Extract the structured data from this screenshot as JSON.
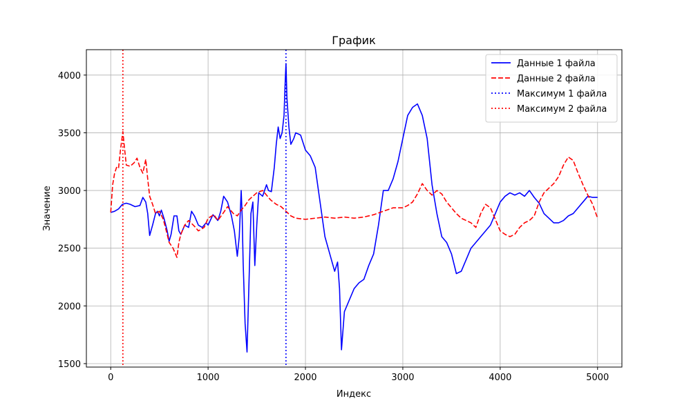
{
  "chart_data": {
    "type": "line",
    "title": "График",
    "xlabel": "Индекс",
    "ylabel": "Значение",
    "xlim": [
      -250,
      5250
    ],
    "ylim": [
      1470,
      4220
    ],
    "xticks": [
      0,
      1000,
      2000,
      3000,
      4000,
      5000
    ],
    "yticks": [
      1500,
      2000,
      2500,
      3000,
      3500,
      4000
    ],
    "grid": true,
    "legend_position": "top-right",
    "series": [
      {
        "name": "Данные 1 файла",
        "color": "#0000ff",
        "style": "solid",
        "x": [
          0,
          40,
          80,
          120,
          160,
          200,
          250,
          300,
          330,
          360,
          380,
          400,
          430,
          460,
          480,
          500,
          520,
          550,
          580,
          600,
          620,
          650,
          680,
          700,
          720,
          760,
          800,
          830,
          860,
          900,
          940,
          980,
          1000,
          1050,
          1100,
          1130,
          1160,
          1200,
          1240,
          1270,
          1300,
          1320,
          1340,
          1350,
          1360,
          1380,
          1400,
          1420,
          1440,
          1460,
          1480,
          1500,
          1520,
          1560,
          1600,
          1620,
          1650,
          1680,
          1700,
          1720,
          1740,
          1760,
          1780,
          1790,
          1800,
          1810,
          1830,
          1850,
          1880,
          1900,
          1950,
          2000,
          2050,
          2100,
          2150,
          2200,
          2250,
          2300,
          2330,
          2350,
          2370,
          2400,
          2450,
          2500,
          2550,
          2600,
          2650,
          2700,
          2750,
          2800,
          2850,
          2900,
          2950,
          3000,
          3050,
          3100,
          3150,
          3200,
          3250,
          3300,
          3350,
          3400,
          3450,
          3500,
          3550,
          3600,
          3650,
          3700,
          3750,
          3800,
          3850,
          3900,
          3950,
          4000,
          4050,
          4100,
          4150,
          4200,
          4250,
          4300,
          4350,
          4400,
          4450,
          4500,
          4550,
          4600,
          4650,
          4700,
          4750,
          4800,
          4850,
          4900,
          4950,
          5000
        ],
        "y": [
          2810,
          2820,
          2840,
          2880,
          2890,
          2880,
          2860,
          2870,
          2940,
          2900,
          2800,
          2610,
          2700,
          2800,
          2820,
          2780,
          2830,
          2750,
          2650,
          2560,
          2620,
          2780,
          2780,
          2650,
          2620,
          2700,
          2680,
          2820,
          2780,
          2700,
          2680,
          2720,
          2700,
          2790,
          2740,
          2820,
          2950,
          2900,
          2780,
          2650,
          2430,
          2600,
          3000,
          2780,
          2380,
          1850,
          1600,
          2200,
          2800,
          2900,
          2350,
          2700,
          2980,
          2950,
          3050,
          3000,
          2990,
          3200,
          3400,
          3550,
          3450,
          3500,
          3650,
          3900,
          4100,
          3800,
          3550,
          3400,
          3450,
          3500,
          3480,
          3350,
          3300,
          3200,
          2900,
          2600,
          2450,
          2300,
          2380,
          2150,
          1620,
          1950,
          2050,
          2150,
          2200,
          2230,
          2350,
          2450,
          2700,
          3000,
          3000,
          3100,
          3250,
          3450,
          3650,
          3720,
          3750,
          3650,
          3450,
          3050,
          2800,
          2600,
          2550,
          2450,
          2280,
          2300,
          2400,
          2500,
          2550,
          2600,
          2650,
          2700,
          2800,
          2900,
          2950,
          2980,
          2960,
          2980,
          2950,
          3000,
          2940,
          2890,
          2800,
          2760,
          2720,
          2720,
          2740,
          2780,
          2800,
          2850,
          2900,
          2950,
          2940,
          2940
        ]
      },
      {
        "name": "Данные 2 файла",
        "color": "#ff0000",
        "style": "dashed",
        "x": [
          0,
          20,
          40,
          60,
          80,
          100,
          125,
          140,
          160,
          200,
          240,
          270,
          300,
          330,
          360,
          380,
          400,
          430,
          460,
          500,
          540,
          580,
          600,
          640,
          680,
          700,
          720,
          760,
          800,
          860,
          900,
          960,
          1000,
          1060,
          1100,
          1160,
          1200,
          1260,
          1300,
          1340,
          1380,
          1420,
          1460,
          1500,
          1560,
          1600,
          1640,
          1700,
          1750,
          1800,
          1850,
          1900,
          2000,
          2100,
          2200,
          2300,
          2400,
          2500,
          2600,
          2700,
          2800,
          2900,
          3000,
          3050,
          3100,
          3150,
          3200,
          3250,
          3300,
          3350,
          3400,
          3450,
          3500,
          3550,
          3600,
          3650,
          3700,
          3750,
          3800,
          3850,
          3900,
          3950,
          4000,
          4050,
          4100,
          4150,
          4200,
          4250,
          4300,
          4350,
          4400,
          4450,
          4500,
          4550,
          4600,
          4650,
          4700,
          4750,
          4800,
          4850,
          4900,
          4950,
          5000
        ],
        "y": [
          2810,
          3050,
          3150,
          3200,
          3190,
          3350,
          3510,
          3380,
          3220,
          3210,
          3240,
          3280,
          3200,
          3150,
          3270,
          3100,
          2950,
          2880,
          2800,
          2820,
          2750,
          2620,
          2550,
          2500,
          2420,
          2550,
          2620,
          2700,
          2740,
          2690,
          2650,
          2680,
          2760,
          2790,
          2740,
          2810,
          2860,
          2800,
          2780,
          2830,
          2870,
          2920,
          2950,
          2980,
          3000,
          2960,
          2920,
          2880,
          2860,
          2820,
          2780,
          2760,
          2750,
          2760,
          2770,
          2760,
          2770,
          2760,
          2770,
          2790,
          2820,
          2850,
          2850,
          2870,
          2900,
          2970,
          3060,
          3000,
          2960,
          3000,
          2970,
          2900,
          2850,
          2800,
          2760,
          2740,
          2720,
          2680,
          2800,
          2880,
          2850,
          2750,
          2650,
          2620,
          2600,
          2620,
          2680,
          2720,
          2740,
          2780,
          2900,
          2980,
          3020,
          3060,
          3120,
          3220,
          3290,
          3260,
          3150,
          3050,
          2960,
          2880,
          2760
        ]
      }
    ],
    "vlines": [
      {
        "name": "Максимум 1 файла",
        "x": 1800,
        "color": "#0000ff",
        "style": "dotted"
      },
      {
        "name": "Максимум 2 файла",
        "x": 125,
        "color": "#ff0000",
        "style": "dotted"
      }
    ]
  }
}
